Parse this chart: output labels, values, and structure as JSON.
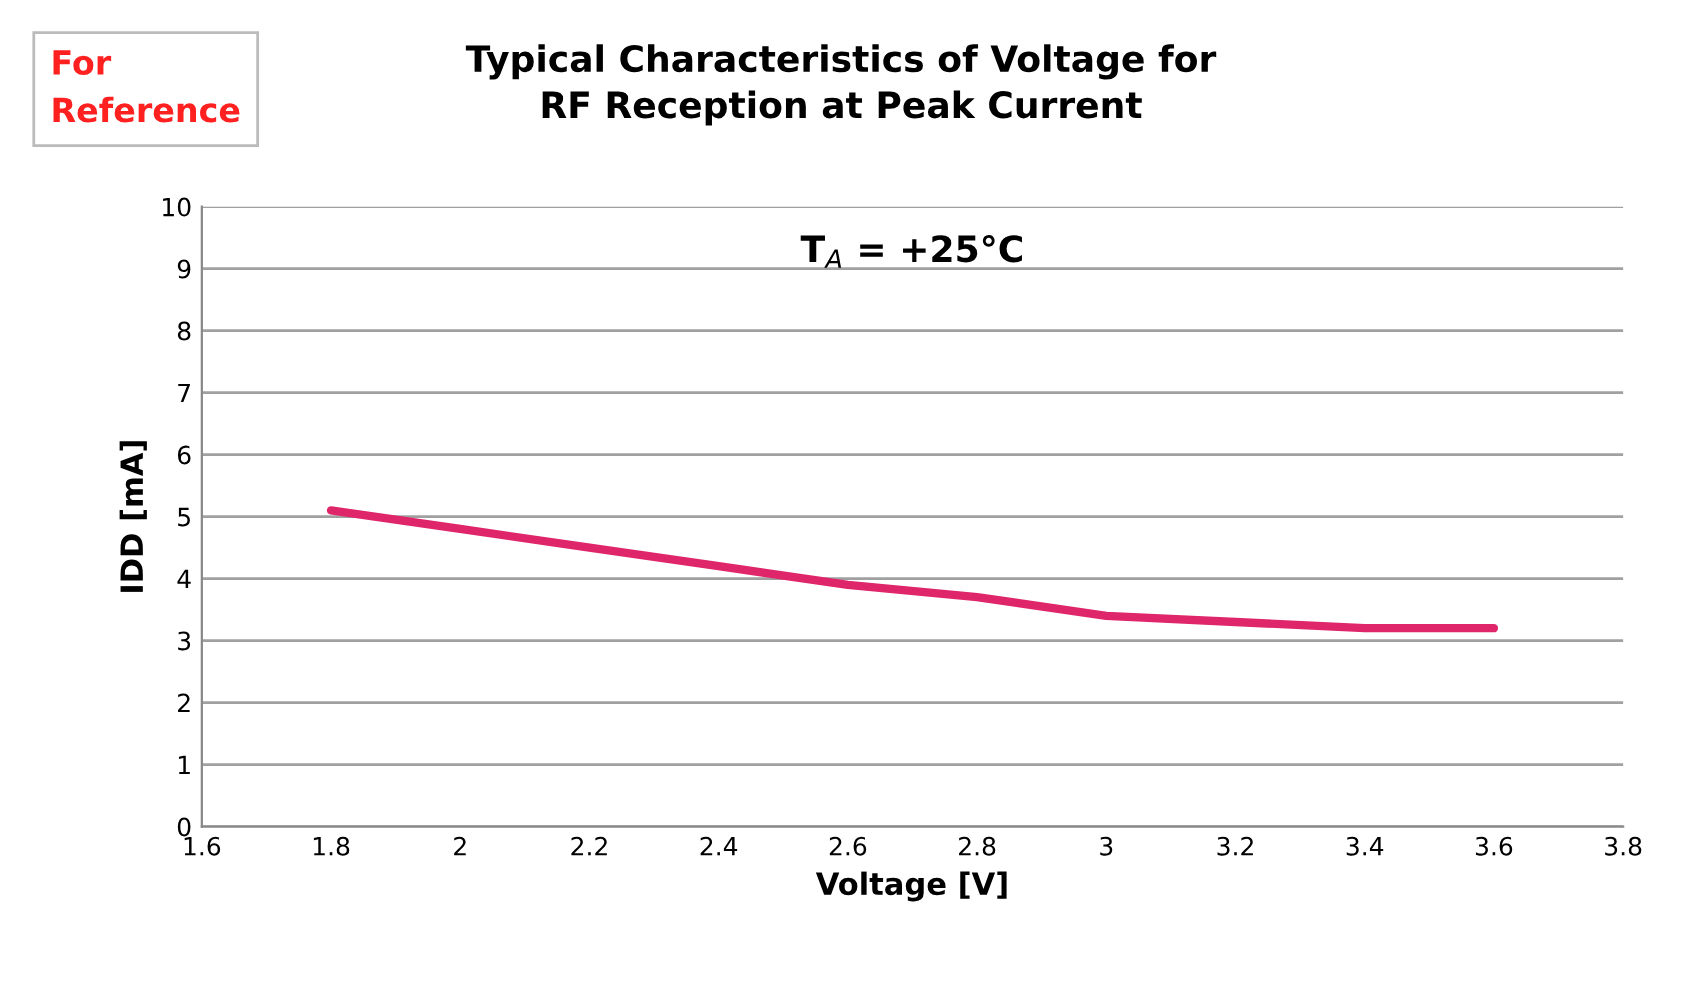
{
  "chart_data": {
    "type": "line",
    "title": "Typical Characteristics of Voltage for\nRF Reception at Peak Current",
    "xlabel": "Voltage [V]",
    "ylabel": "IDD [mA]",
    "annotations": [
      "For\nReference",
      "T$_{A}$ = +25°C"
    ],
    "x": [
      1.8,
      2.0,
      2.2,
      2.4,
      2.6,
      2.8,
      3.0,
      3.2,
      3.4,
      3.6
    ],
    "series": [
      {
        "color": "#e0266a",
        "values": [
          5.1,
          4.8,
          4.5,
          4.2,
          3.9,
          3.7,
          3.4,
          3.3,
          3.2,
          3.2
        ]
      }
    ],
    "xlim": [
      1.6,
      3.8
    ],
    "xticks": [
      1.6,
      1.8,
      2,
      2.2,
      2.4,
      2.6,
      2.8,
      3,
      3.2,
      3.4,
      3.6,
      3.8
    ],
    "ylim": [
      0,
      10
    ],
    "yticks": [
      0,
      1,
      2,
      3,
      4,
      5,
      6,
      7,
      8,
      9,
      10
    ],
    "grid": "y",
    "marker": "none",
    "line_style": "solid"
  }
}
